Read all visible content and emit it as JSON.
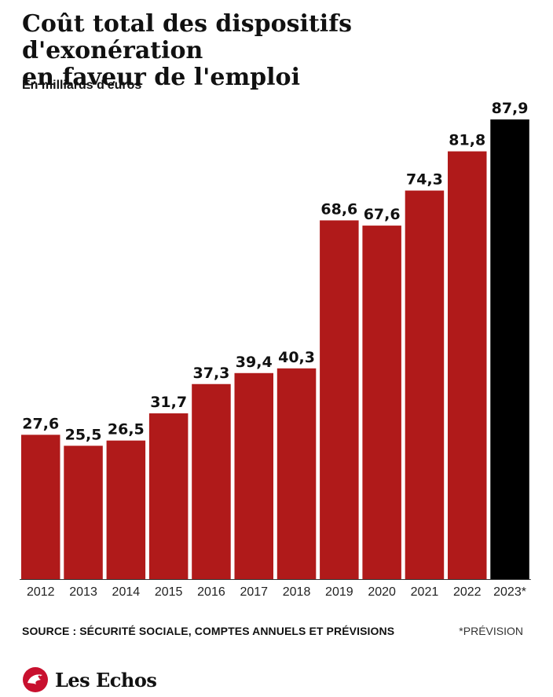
{
  "header": {
    "title_line1": "Coût total des dispositifs d'exonération",
    "title_line2": "en faveur de l'emploi",
    "subtitle": "En milliards d'euros"
  },
  "footer": {
    "source": "SOURCE : SÉCURITÉ SOCIALE, COMPTES ANNUELS ET PRÉVISIONS",
    "note": "*PRÉVISION",
    "logo_text": "Les Echos"
  },
  "colors": {
    "bar": "#b01a1a",
    "bar_forecast": "#000000",
    "axis": "#333333"
  },
  "chart_data": {
    "type": "bar",
    "title": "Coût total des dispositifs d'exonération en faveur de l'emploi",
    "ylabel": "En milliards d'euros",
    "xlabel": "",
    "categories": [
      "2012",
      "2013",
      "2014",
      "2015",
      "2016",
      "2017",
      "2018",
      "2019",
      "2020",
      "2021",
      "2022",
      "2023*"
    ],
    "values": [
      27.6,
      25.5,
      26.5,
      31.7,
      37.3,
      39.4,
      40.3,
      68.6,
      67.6,
      74.3,
      81.8,
      87.9
    ],
    "value_labels": [
      "27,6",
      "25,5",
      "26,5",
      "31,7",
      "37,3",
      "39,4",
      "40,3",
      "68,6",
      "67,6",
      "74,3",
      "81,8",
      "87,9"
    ],
    "forecast_index": 11,
    "ylim": [
      0,
      87.9
    ],
    "grid": false,
    "legend": "none"
  }
}
